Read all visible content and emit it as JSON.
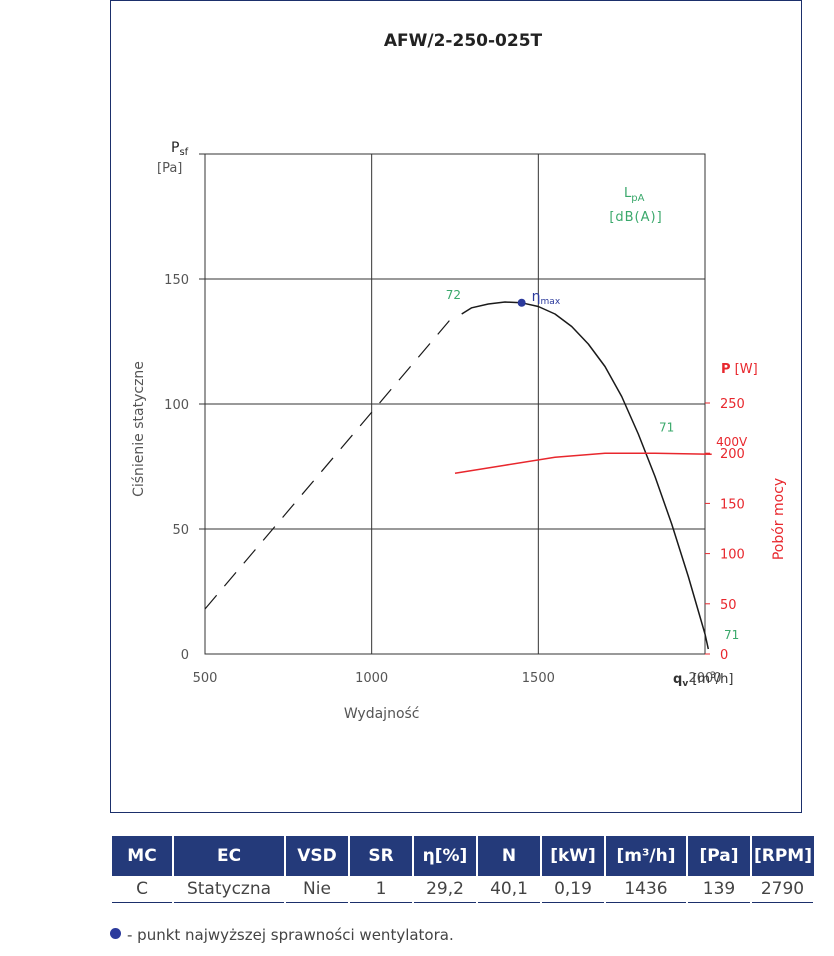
{
  "chart_data": {
    "type": "line",
    "title": "AFW/2-250-025T",
    "x_axis": {
      "label_symbol": "q",
      "label_sub": "v",
      "label_unit_pre": "[m",
      "label_unit_sup": "3",
      "label_unit_post": "/h]",
      "title": "Wydajność",
      "range": [
        500,
        2000
      ],
      "ticks": [
        "500",
        "1000",
        "1500",
        "2000"
      ]
    },
    "y_axis": {
      "label_symbol": "P",
      "label_sub": "sf",
      "label_unit": "[Pa]",
      "title": "Ciśnienie statyczne",
      "range": [
        0,
        200
      ],
      "ticks": [
        "0",
        "50",
        "100",
        "150"
      ]
    },
    "y2_axis": {
      "label_symbol": "P",
      "label_unit": "[W]",
      "title": "Pobór mocy",
      "range": [
        0,
        250
      ],
      "ticks": [
        "0",
        "50",
        "100",
        "150",
        "200",
        "250"
      ],
      "color": "#e8272d"
    },
    "noise_label": {
      "symbol": "L",
      "sub": "pA",
      "unit": "[dB(A)]",
      "color": "#3aa86b"
    },
    "series": [
      {
        "kind": "pressure",
        "color": "#1a1a1a",
        "x": [
          1270,
          1300,
          1350,
          1400,
          1450,
          1500,
          1550,
          1600,
          1650,
          1700,
          1750,
          1800,
          1850,
          1900,
          1950,
          2000,
          2010
        ],
        "y": [
          136,
          138.5,
          140,
          140.8,
          140.5,
          139,
          136,
          131,
          124,
          115,
          103,
          88,
          71,
          52,
          31,
          8,
          2
        ]
      },
      {
        "kind": "pressure-unstable",
        "color": "#1a1a1a",
        "x": [
          500,
          1250
        ],
        "y": [
          18,
          136
        ]
      },
      {
        "kind": "power",
        "name": "400V",
        "color": "#e8272d",
        "x": [
          1250,
          1400,
          1550,
          1700,
          1850,
          2020
        ],
        "y": [
          180,
          188,
          196,
          200,
          200,
          199
        ]
      }
    ],
    "eta_max_point": {
      "x": 1450,
      "y": 140.5,
      "label": "η",
      "label_sub": "max",
      "color": "#2b3a9c"
    },
    "noise_annotations": [
      {
        "text": "72",
        "x": 1245,
        "y": 142
      },
      {
        "text": "71",
        "x": 1885,
        "y": 89
      },
      {
        "text": "71",
        "x": 2080,
        "y": 6
      }
    ],
    "power_label": {
      "text": "400V",
      "x": 2080,
      "y": 81
    },
    "grid": true
  },
  "table": {
    "headers": [
      "MC",
      "EC",
      "VSD",
      "SR",
      "η[%]",
      "N",
      "[kW]",
      "[m³/h]",
      "[Pa]",
      "[RPM]"
    ],
    "row": [
      "C",
      "Statyczna",
      "Nie",
      "1",
      "29,2",
      "40,1",
      "0,19",
      "1436",
      "139",
      "2790"
    ]
  },
  "footnote": "- punkt najwyższej sprawności wentylatora."
}
